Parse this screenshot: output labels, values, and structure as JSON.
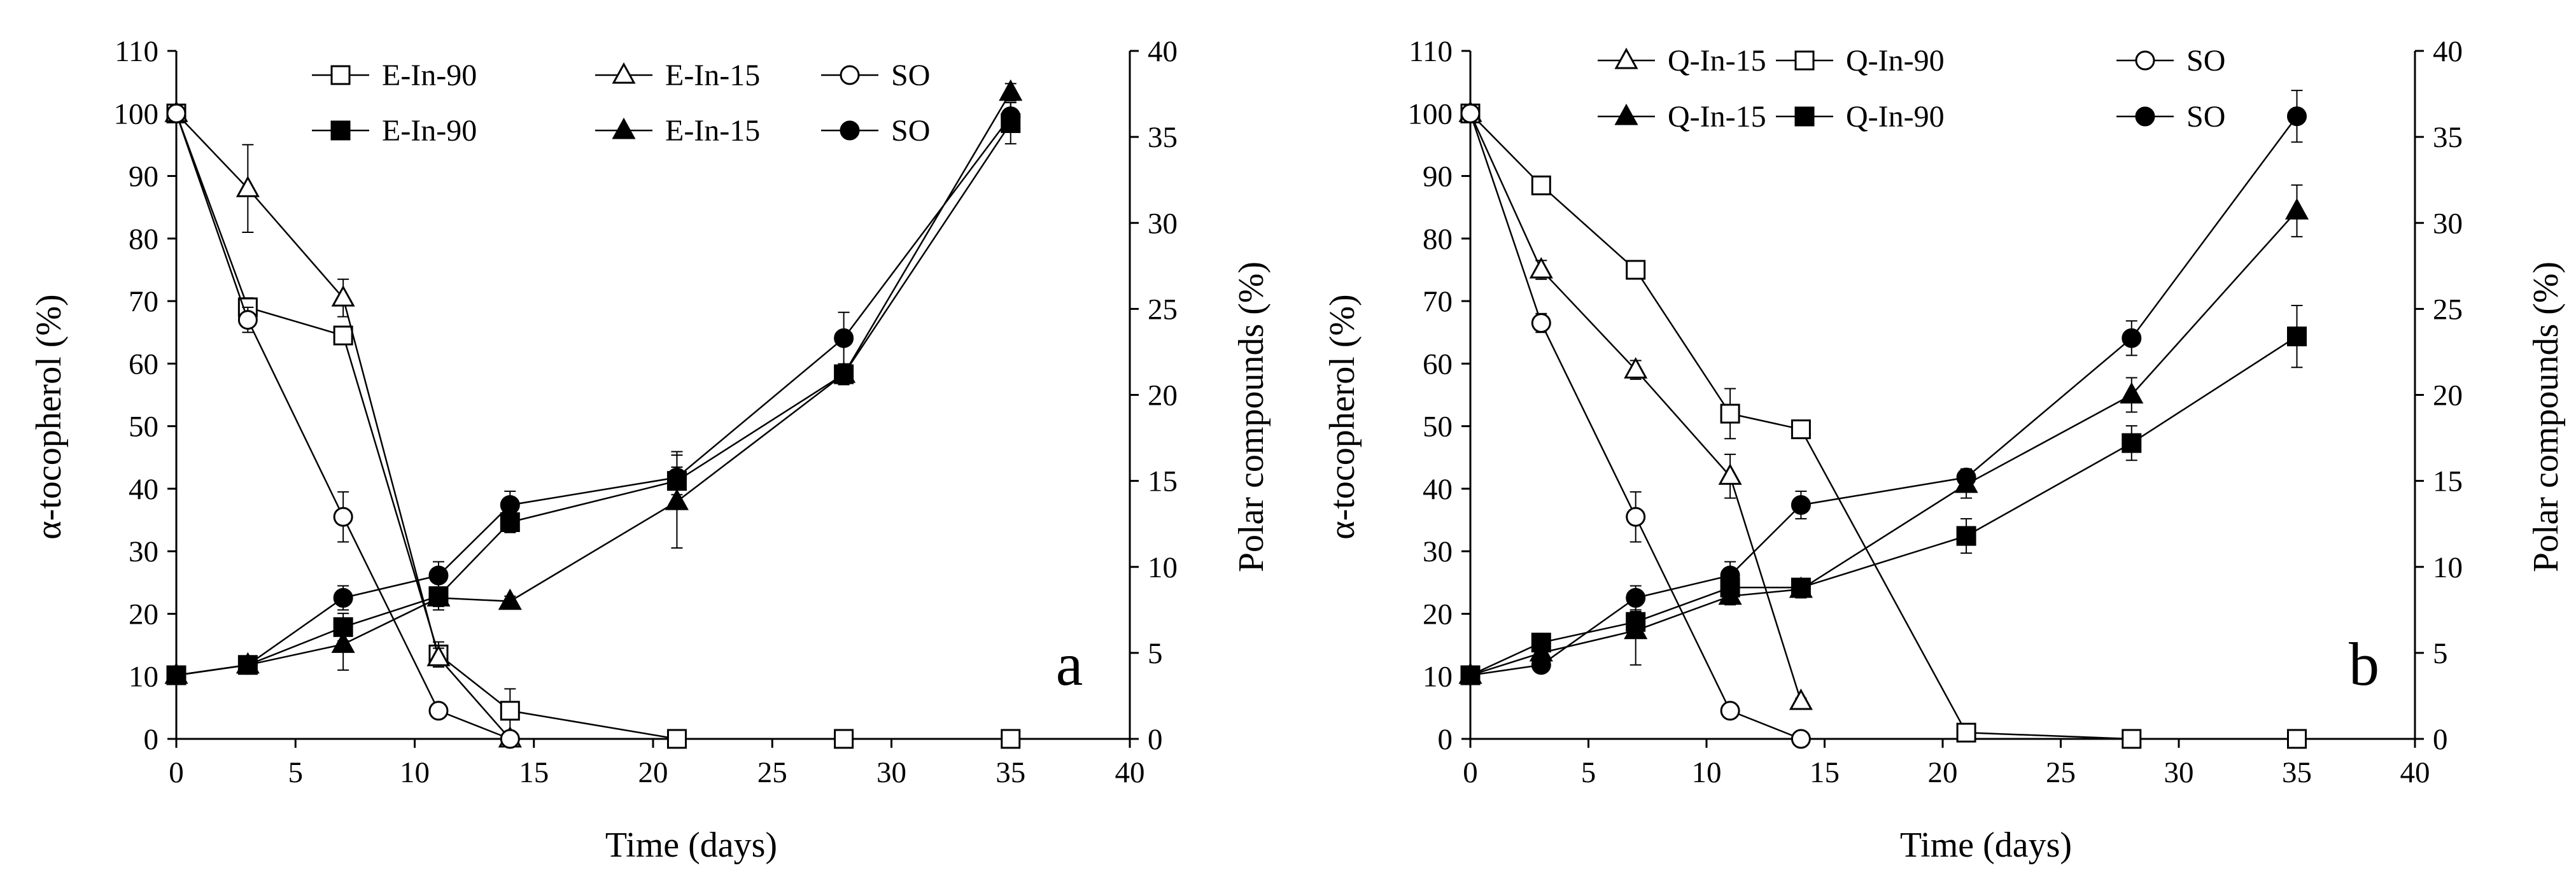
{
  "chart_data": [
    {
      "type": "line",
      "panel_label": "a",
      "xlabel": "Time (days)",
      "ylabel": "α-tocopherol (%)",
      "ylabel2": "Polar compounds (%)",
      "xlim": [
        0,
        40
      ],
      "ylim": [
        0,
        110
      ],
      "y2lim": [
        0,
        40
      ],
      "x_ticks": [
        "0",
        "5",
        "10",
        "15",
        "20",
        "25",
        "30",
        "35",
        "40"
      ],
      "y_ticks": [
        "0",
        "10",
        "20",
        "30",
        "40",
        "50",
        "60",
        "70",
        "80",
        "90",
        "100",
        "110"
      ],
      "y2_ticks": [
        "0",
        "5",
        "10",
        "15",
        "20",
        "25",
        "30",
        "35",
        "40"
      ],
      "grid": false,
      "legend_position": "top",
      "series": [
        {
          "name": "E-In-90",
          "axis": "left",
          "marker": "square",
          "filled": false,
          "x": [
            0,
            3,
            7,
            11,
            14,
            21,
            28,
            35
          ],
          "values": [
            100,
            69,
            64.5,
            13.5,
            4.5,
            0,
            0,
            0
          ],
          "errors": [
            0,
            1.5,
            1,
            2,
            3.5,
            0,
            0,
            0
          ]
        },
        {
          "name": "E-In-15",
          "axis": "left",
          "marker": "triangle",
          "filled": false,
          "x": [
            0,
            3,
            7,
            11,
            14
          ],
          "values": [
            100,
            88,
            70.5,
            13,
            0
          ],
          "errors": [
            0,
            7,
            3,
            1.5,
            0
          ]
        },
        {
          "name": "SO",
          "axis": "left",
          "marker": "circle",
          "filled": false,
          "x": [
            0,
            3,
            7,
            11,
            14
          ],
          "values": [
            100,
            67,
            35.5,
            4.5,
            0
          ],
          "errors": [
            0,
            2,
            4,
            0.5,
            0
          ]
        },
        {
          "name": "E-In-90",
          "axis": "right",
          "marker": "square",
          "filled": true,
          "x": [
            0,
            3,
            7,
            11,
            14,
            21,
            28,
            35
          ],
          "values": [
            3.7,
            4.3,
            6.5,
            8.3,
            12.6,
            15,
            21.2,
            35.8
          ],
          "errors": [
            0,
            0.3,
            0.8,
            0.8,
            0.6,
            0.8,
            0.6,
            1.2
          ]
        },
        {
          "name": "E-In-15",
          "axis": "right",
          "marker": "triangle",
          "filled": true,
          "x": [
            0,
            3,
            7,
            11,
            14,
            21,
            28,
            35
          ],
          "values": [
            3.7,
            4.3,
            5.5,
            8.2,
            8,
            13.8,
            21.2,
            37.6
          ],
          "errors": [
            0,
            0.3,
            1.5,
            0.5,
            0.3,
            2.7,
            0.6,
            0.5
          ]
        },
        {
          "name": "SO",
          "axis": "right",
          "marker": "circle",
          "filled": true,
          "x": [
            0,
            3,
            7,
            11,
            14,
            21,
            28,
            35
          ],
          "values": [
            3.7,
            4.3,
            8.2,
            9.5,
            13.6,
            15.2,
            23.3,
            36.2
          ],
          "errors": [
            0,
            0.3,
            0.7,
            0.8,
            0.8,
            1.5,
            1.5,
            0.8
          ]
        }
      ]
    },
    {
      "type": "line",
      "panel_label": "b",
      "xlabel": "Time (days)",
      "ylabel": "α-tocopherol (%)",
      "ylabel2": "Polar compounds (%)",
      "xlim": [
        0,
        40
      ],
      "ylim": [
        0,
        110
      ],
      "y2lim": [
        0,
        40
      ],
      "x_ticks": [
        "0",
        "5",
        "10",
        "15",
        "20",
        "25",
        "30",
        "35",
        "40"
      ],
      "y_ticks": [
        "0",
        "10",
        "20",
        "30",
        "40",
        "50",
        "60",
        "70",
        "80",
        "90",
        "100",
        "110"
      ],
      "y2_ticks": [
        "0",
        "5",
        "10",
        "15",
        "20",
        "25",
        "30",
        "35",
        "40"
      ],
      "grid": false,
      "legend_position": "top",
      "series": [
        {
          "name": "Q-In-15",
          "axis": "left",
          "marker": "triangle",
          "filled": false,
          "x": [
            0,
            3,
            7,
            11,
            14
          ],
          "values": [
            100,
            75,
            59,
            42,
            6
          ],
          "errors": [
            0,
            1.5,
            1.5,
            3.5,
            0.5
          ]
        },
        {
          "name": "Q-In-90",
          "axis": "left",
          "marker": "square",
          "filled": false,
          "x": [
            0,
            3,
            7,
            11,
            14,
            21,
            28,
            35
          ],
          "values": [
            100,
            88.5,
            75,
            52,
            49.5,
            1,
            0,
            0
          ],
          "errors": [
            0,
            0.5,
            0.5,
            4,
            0.5,
            0.5,
            0,
            0
          ]
        },
        {
          "name": "SO",
          "axis": "left",
          "marker": "circle",
          "filled": false,
          "x": [
            0,
            3,
            7,
            11,
            14
          ],
          "values": [
            100,
            66.5,
            35.5,
            4.5,
            0
          ],
          "errors": [
            0,
            1.5,
            4,
            0.5,
            0
          ]
        },
        {
          "name": "Q-In-15",
          "axis": "right",
          "marker": "triangle",
          "filled": true,
          "x": [
            0,
            3,
            7,
            11,
            14,
            21,
            28,
            35
          ],
          "values": [
            3.7,
            5,
            6.3,
            8.3,
            8.7,
            14.8,
            20,
            30.7
          ],
          "errors": [
            0,
            0.3,
            2,
            0.5,
            0.5,
            0.8,
            1,
            1.5
          ]
        },
        {
          "name": "Q-In-90",
          "axis": "right",
          "marker": "square",
          "filled": true,
          "x": [
            0,
            3,
            7,
            11,
            14,
            21,
            28,
            35
          ],
          "values": [
            3.7,
            5.6,
            6.8,
            8.8,
            8.8,
            11.8,
            17.2,
            23.4
          ],
          "errors": [
            0,
            0.3,
            0.6,
            0.6,
            0.5,
            1,
            1,
            1.8
          ]
        },
        {
          "name": "SO",
          "axis": "right",
          "marker": "circle",
          "filled": true,
          "x": [
            0,
            3,
            7,
            11,
            14,
            21,
            28,
            35
          ],
          "values": [
            3.7,
            4.3,
            8.2,
            9.5,
            13.6,
            15.2,
            23.3,
            36.2
          ],
          "errors": [
            0,
            0.3,
            0.7,
            0.8,
            0.8,
            0.5,
            1,
            1.5
          ]
        }
      ]
    }
  ]
}
